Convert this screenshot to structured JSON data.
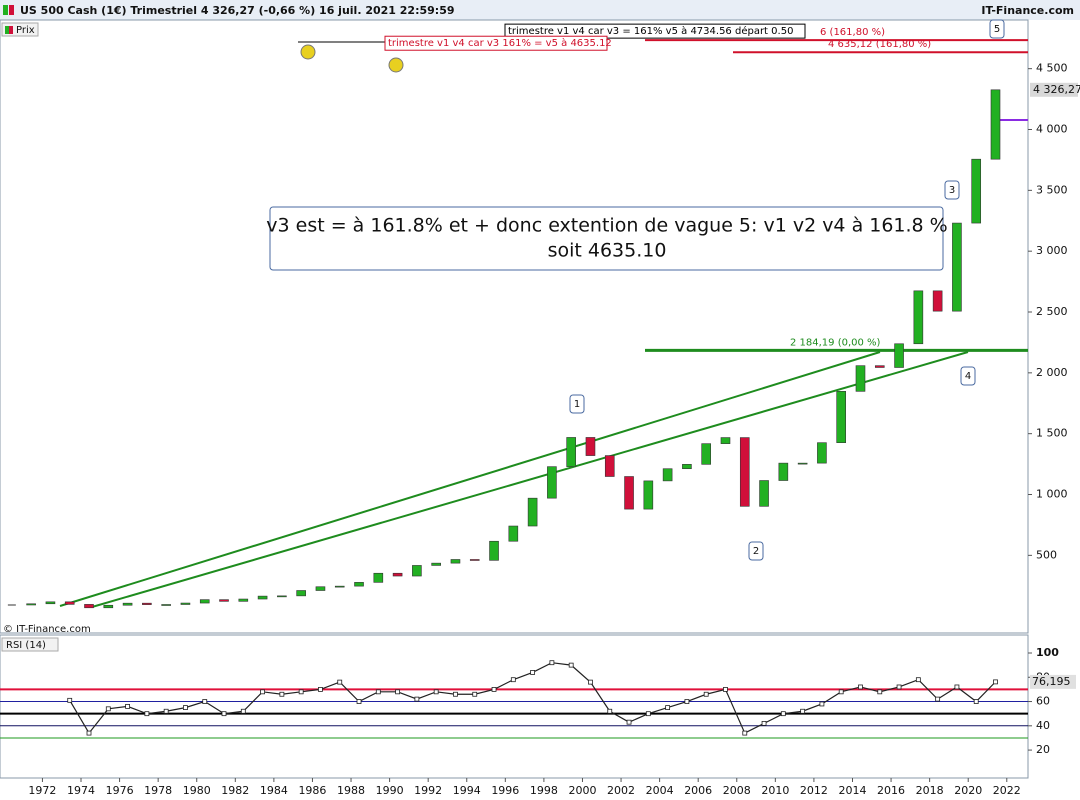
{
  "header": {
    "title": "US 500 Cash (1€) Trimestriel 4 326,27 (-0,66 %) 16 juil. 2021 22:59:59",
    "brand": "IT-Finance.com",
    "legend": "Prix",
    "copyright": "© IT-Finance.com"
  },
  "chart_data": [
    {
      "type": "candlestick",
      "title": "Prix",
      "x": [
        1970,
        1971,
        1972,
        1973,
        1974,
        1975,
        1976,
        1977,
        1978,
        1979,
        1980,
        1981,
        1982,
        1983,
        1984,
        1985,
        1986,
        1987,
        1988,
        1989,
        1990,
        1991,
        1992,
        1993,
        1994,
        1995,
        1996,
        1997,
        1998,
        1999,
        2000,
        2001,
        2002,
        2003,
        2004,
        2005,
        2006,
        2007,
        2008,
        2009,
        2010,
        2011,
        2012,
        2013,
        2014,
        2015,
        2016,
        2017,
        2018,
        2019,
        2020,
        2021
      ],
      "values": [
        92,
        102,
        118,
        97,
        69,
        90,
        107,
        95,
        96,
        108,
        136,
        122,
        141,
        165,
        167,
        211,
        242,
        247,
        278,
        353,
        330,
        417,
        436,
        466,
        459,
        616,
        741,
        970,
        1229,
        1469,
        1320,
        1148,
        880,
        1112,
        1212,
        1248,
        1418,
        1468,
        903,
        1115,
        1258,
        1258,
        1426,
        1848,
        2059,
        2044,
        2239,
        2674,
        2507,
        3231,
        3756,
        4326.27
      ],
      "colors": {
        "up": "#22b022",
        "down": "#d0103a"
      },
      "xlim": [
        1969.8,
        2023.1
      ],
      "xticks": [
        1972,
        1974,
        1976,
        1978,
        1980,
        1982,
        1984,
        1986,
        1988,
        1990,
        1992,
        1994,
        1996,
        1998,
        2000,
        2002,
        2004,
        2006,
        2008,
        2010,
        2012,
        2014,
        2016,
        2018,
        2020,
        2022
      ],
      "ylim": [
        -130,
        4900
      ],
      "yticks": [
        500,
        {
          "value": 1000,
          "label": "1 000"
        },
        {
          "value": 1500,
          "label": "1 500"
        },
        {
          "value": 2000,
          "label": "2 000"
        },
        {
          "value": 2500,
          "label": "2 500"
        },
        {
          "value": 3000,
          "label": "3 000"
        },
        {
          "value": 3500,
          "label": "3 500"
        },
        {
          "value": 4000,
          "label": "4 000"
        },
        {
          "value": 4500,
          "label": "4 500"
        }
      ],
      "last_label": "4 326,27",
      "levels": [
        {
          "value": 4734.56,
          "color": "#d0102a",
          "label": "trimestre v1 v4 car v3 = 161% v5 à 4734.56 départ 0.50",
          "right_label": "6 (161,80 %)"
        },
        {
          "value": 4635.12,
          "color": "#d0102a",
          "label": "trimestre v1 v4 car v3 161% = v5 à 4635.12",
          "right_label": "4 635,12 (161,80 %)"
        },
        {
          "value": 2184.19,
          "color": "#1e8c1e",
          "right_label": "2 184,19 (0,00 %)"
        }
      ],
      "annotation": [
        "v3 est = à 161.8% et + donc extention de vague 5: v1 v2 v4 à 161.8 %",
        "soit 4635.10"
      ],
      "waves": [
        "1",
        "2",
        "3",
        "4",
        "5"
      ]
    },
    {
      "type": "line",
      "title": "RSI (14)",
      "x": [
        1970,
        1971,
        1972,
        1973,
        1974,
        1975,
        1976,
        1977,
        1978,
        1979,
        1980,
        1981,
        1982,
        1983,
        1984,
        1985,
        1986,
        1987,
        1988,
        1989,
        1990,
        1991,
        1992,
        1993,
        1994,
        1995,
        1996,
        1997,
        1998,
        1999,
        2000,
        2001,
        2002,
        2003,
        2004,
        2005,
        2006,
        2007,
        2008,
        2009,
        2010,
        2011,
        2012,
        2013,
        2014,
        2015,
        2016,
        2017,
        2018,
        2019,
        2020,
        2021
      ],
      "values": [
        null,
        null,
        null,
        61,
        34,
        54,
        56,
        50,
        52,
        55,
        60,
        50,
        52,
        68,
        66,
        68,
        70,
        76,
        60,
        68,
        68,
        62,
        68,
        66,
        66,
        70,
        78,
        84,
        92,
        90,
        76,
        52,
        43,
        50,
        55,
        60,
        66,
        70,
        34,
        42,
        50,
        52,
        58,
        68,
        72,
        68,
        72,
        78,
        62,
        72,
        60,
        76.195
      ],
      "value_labels": {
        "51": "76,195"
      },
      "color": "#222222",
      "ylim": [
        -3,
        114
      ],
      "yticks": [
        20,
        40,
        60,
        80,
        100
      ],
      "levels": [
        {
          "value": 70,
          "color": "#e0103a"
        },
        {
          "value": 60,
          "color": "#2020a0"
        },
        {
          "value": 50,
          "color": "#000000"
        },
        {
          "value": 40,
          "color": "#101060"
        },
        {
          "value": 30,
          "color": "#1e9a1e"
        }
      ]
    }
  ]
}
